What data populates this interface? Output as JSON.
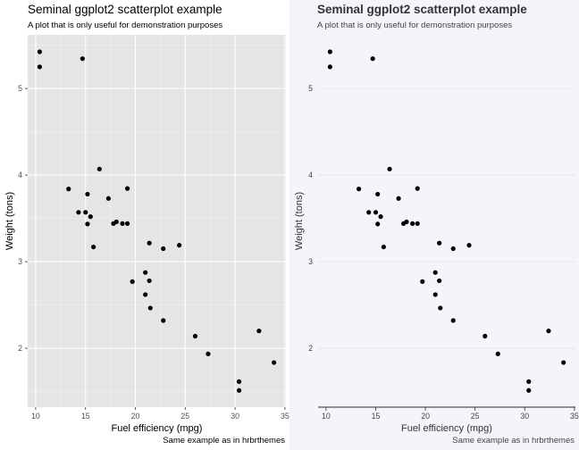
{
  "panels": [
    {
      "title": "Seminal ggplot2 scatterplot example",
      "subtitle": "A plot that is only useful for demonstration purposes",
      "caption": "Same example as in hrbrthemes",
      "theme": "ggplot-grey",
      "background": "#e5e5e5",
      "point_color": "#000000"
    },
    {
      "title": "Seminal ggplot2 scatterplot example",
      "subtitle": "A plot that is only useful for demonstration purposes",
      "caption": "Same example as in hrbrthemes",
      "theme": "hrbrthemes-ipsum",
      "background": "#f4f5fa",
      "point_color": "#000000"
    }
  ],
  "chart_data": {
    "type": "scatter",
    "xlabel": "Fuel efficiency (mpg)",
    "ylabel": "Weight (tons)",
    "xlim": [
      9.2,
      35.1
    ],
    "ylim": [
      1.32,
      5.62
    ],
    "xticks": [
      10,
      15,
      20,
      25,
      30,
      35
    ],
    "yticks": [
      2,
      3,
      4,
      5
    ],
    "points": [
      {
        "x": 21.0,
        "y": 2.62
      },
      {
        "x": 21.0,
        "y": 2.875
      },
      {
        "x": 22.8,
        "y": 2.32
      },
      {
        "x": 21.4,
        "y": 3.215
      },
      {
        "x": 18.7,
        "y": 3.44
      },
      {
        "x": 18.1,
        "y": 3.46
      },
      {
        "x": 14.3,
        "y": 3.57
      },
      {
        "x": 24.4,
        "y": 3.19
      },
      {
        "x": 22.8,
        "y": 3.15
      },
      {
        "x": 19.2,
        "y": 3.44
      },
      {
        "x": 17.8,
        "y": 3.44
      },
      {
        "x": 16.4,
        "y": 4.07
      },
      {
        "x": 17.3,
        "y": 3.73
      },
      {
        "x": 15.2,
        "y": 3.78
      },
      {
        "x": 10.4,
        "y": 5.25
      },
      {
        "x": 10.4,
        "y": 5.424
      },
      {
        "x": 14.7,
        "y": 5.345
      },
      {
        "x": 32.4,
        "y": 2.2
      },
      {
        "x": 30.4,
        "y": 1.615
      },
      {
        "x": 33.9,
        "y": 1.835
      },
      {
        "x": 21.5,
        "y": 2.465
      },
      {
        "x": 15.5,
        "y": 3.52
      },
      {
        "x": 15.2,
        "y": 3.435
      },
      {
        "x": 13.3,
        "y": 3.84
      },
      {
        "x": 19.2,
        "y": 3.845
      },
      {
        "x": 27.3,
        "y": 1.935
      },
      {
        "x": 26.0,
        "y": 2.14
      },
      {
        "x": 30.4,
        "y": 1.513
      },
      {
        "x": 15.8,
        "y": 3.17
      },
      {
        "x": 19.7,
        "y": 2.77
      },
      {
        "x": 15.0,
        "y": 3.57
      },
      {
        "x": 21.4,
        "y": 2.78
      }
    ]
  }
}
